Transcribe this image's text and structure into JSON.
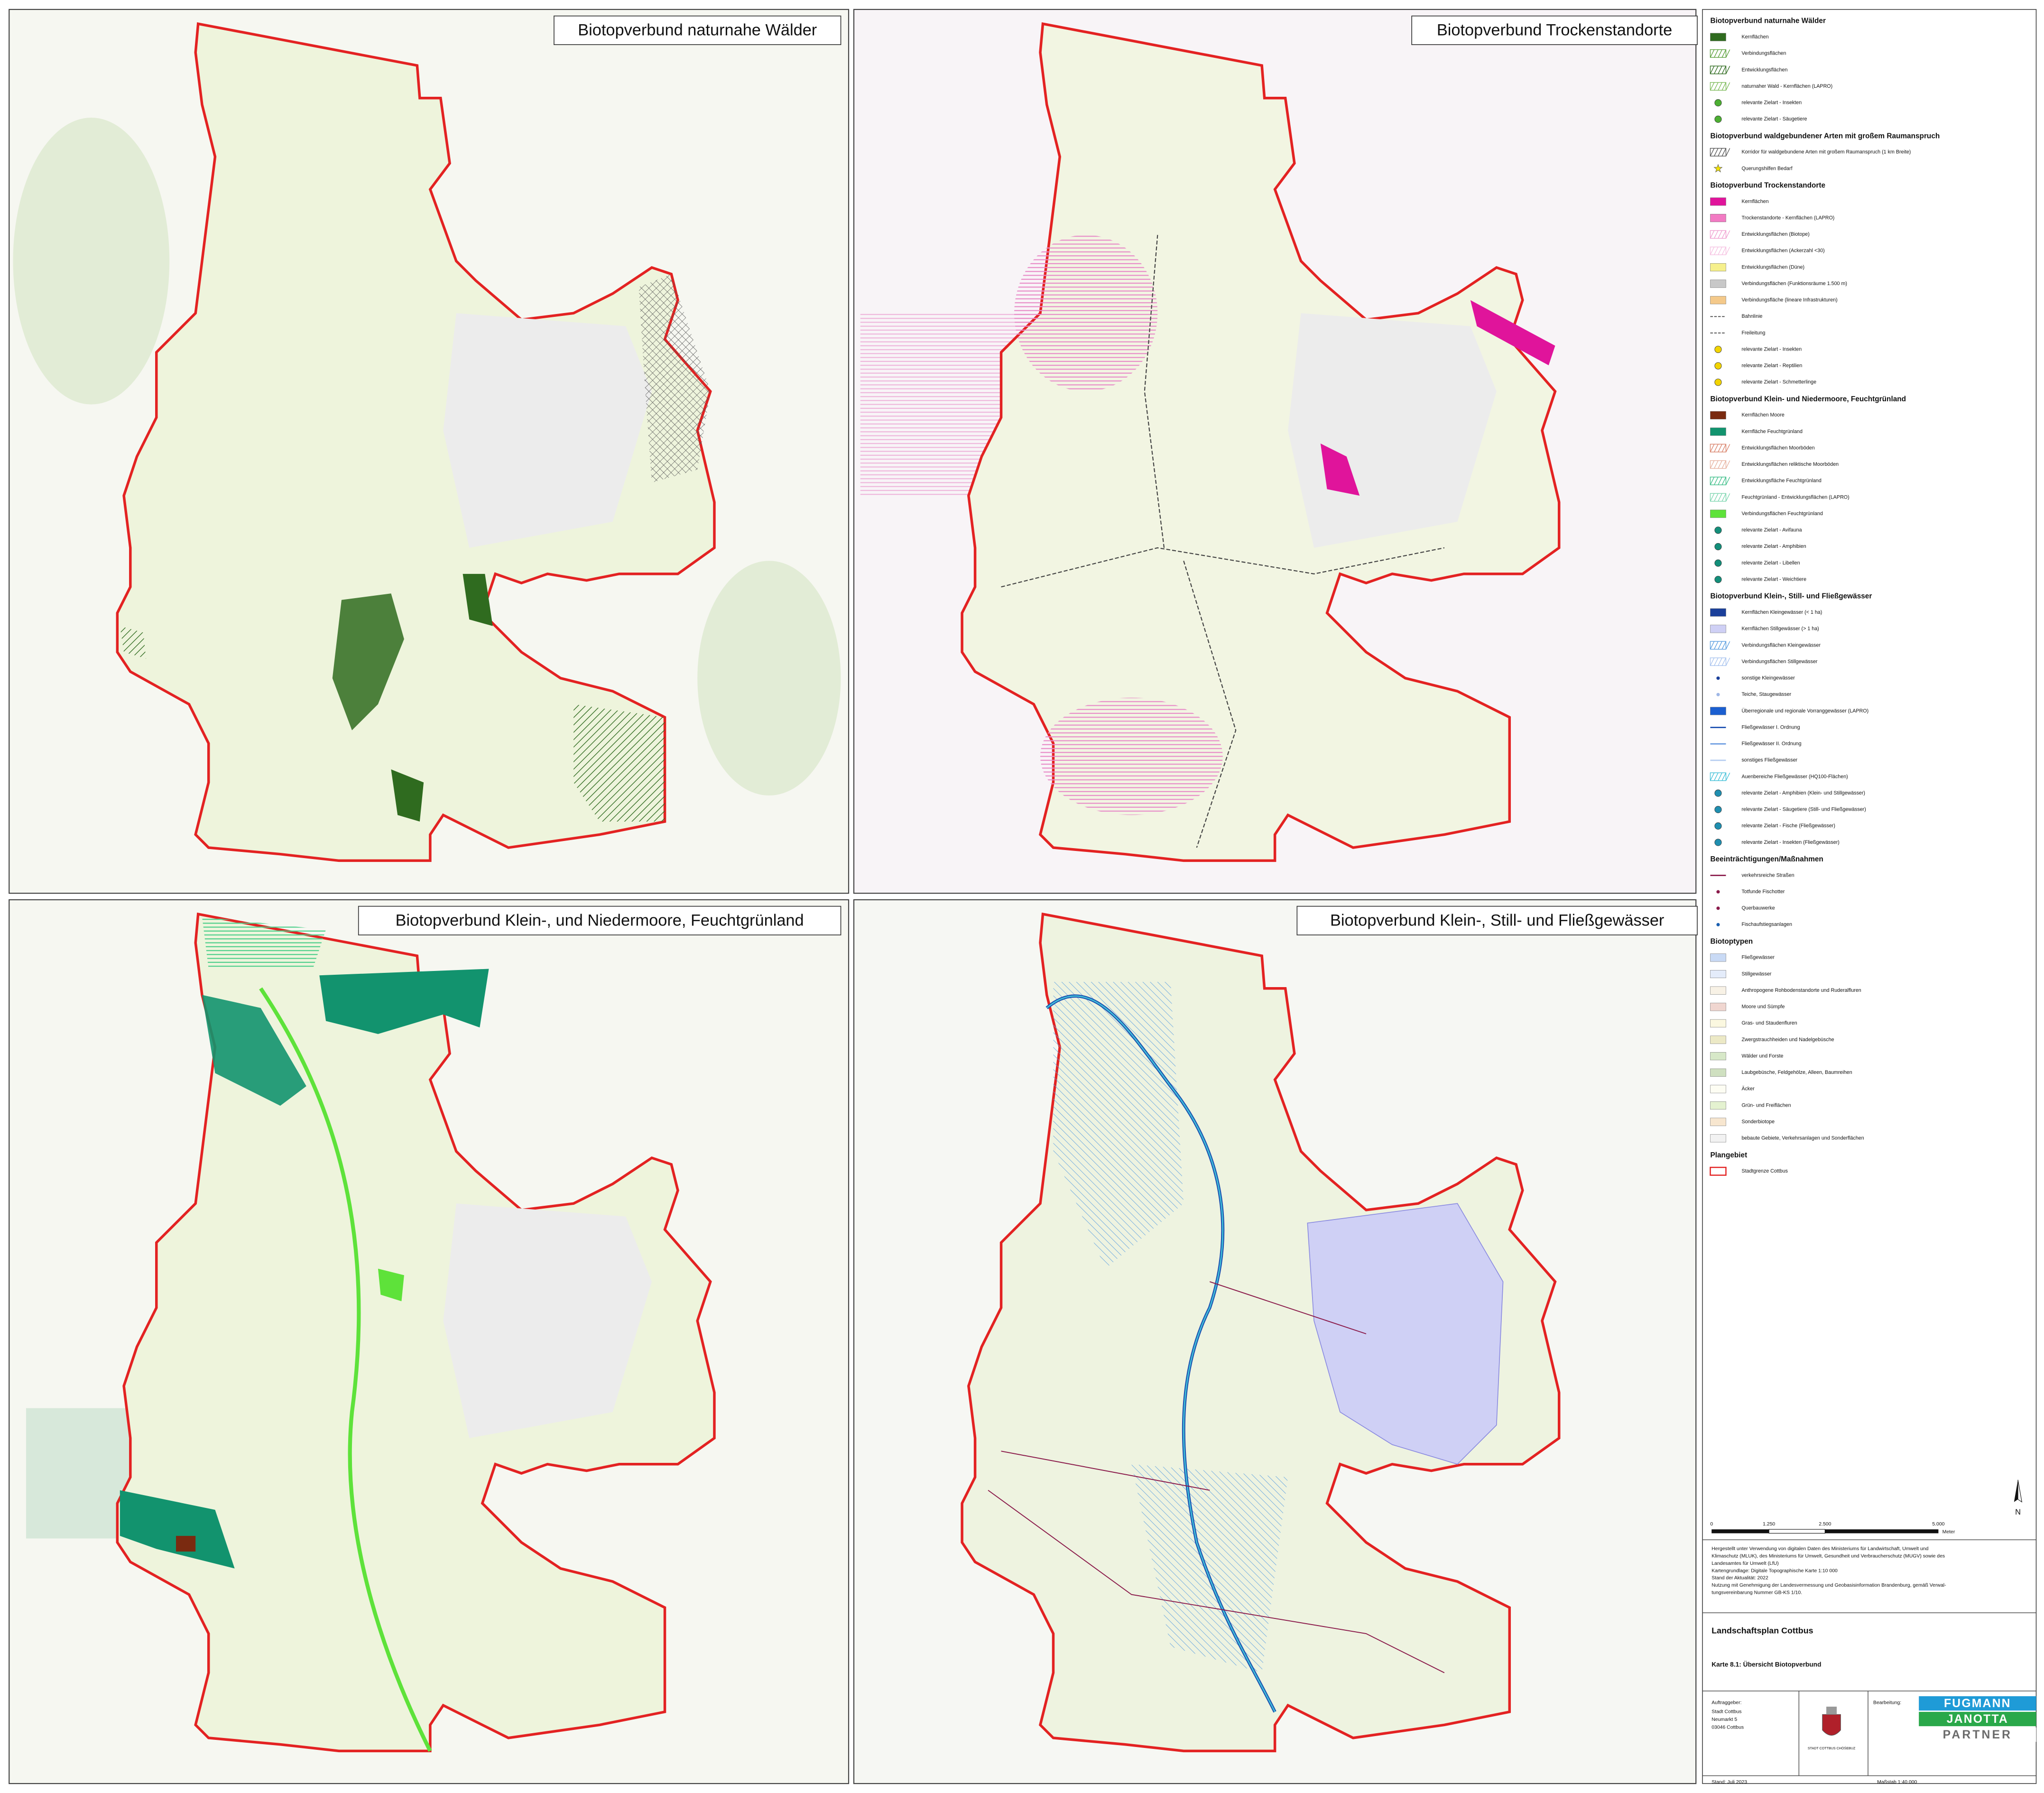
{
  "panels": [
    {
      "title": "Biotopverbund naturnahe Wälder"
    },
    {
      "title": "Biotopverbund Trockenstandorte"
    },
    {
      "title": "Biotopverbund Klein-, und Niedermoore, Feuchtgrünland"
    },
    {
      "title": "Biotopverbund Klein-, Still- und Fließgewässer"
    }
  ],
  "legend": {
    "sections": [
      {
        "title": "Biotopverbund naturnahe Wälder",
        "items": [
          {
            "label": "Kernflächen",
            "color": "#2f6b1f",
            "symbol": "rect"
          },
          {
            "label": "Verbindungsflächen",
            "color": "#5aa03a",
            "symbol": "hatch"
          },
          {
            "label": "Entwicklungsflächen",
            "color": "#2f6b1f",
            "symbol": "hatch"
          },
          {
            "label": "naturnaher Wald - Kernflächen (LAPRO)",
            "color": "#7dbb5a",
            "symbol": "hatch"
          },
          {
            "label": "relevante Zielart - Insekten",
            "color": "#4caf32",
            "symbol": "circle"
          },
          {
            "label": "relevante Zielart - Säugetiere",
            "color": "#4caf32",
            "symbol": "circle"
          }
        ]
      },
      {
        "title": "Biotopverbund waldgebundener Arten mit großem Raumanspruch",
        "items": [
          {
            "label": "Korridor für waldgebundene Arten mit großem Raumanspruch (1 km Breite)",
            "color": "#555555",
            "symbol": "hatch"
          },
          {
            "label": "Querungshilfen Bedarf",
            "color": "#f2e200",
            "symbol": "star"
          }
        ]
      },
      {
        "title": "Biotopverbund Trockenstandorte",
        "items": [
          {
            "label": "Kernflächen",
            "color": "#e0149b",
            "symbol": "rect"
          },
          {
            "label": "Trockenstandorte - Kernflächen (LAPRO)",
            "color": "#f27ac3",
            "symbol": "rect"
          },
          {
            "label": "Entwicklungsflächen (Biotope)",
            "color": "#f0a0d0",
            "symbol": "hatch"
          },
          {
            "label": "Entwicklungsflächen (Ackerzahl <30)",
            "color": "#f6c2e2",
            "symbol": "hatch"
          },
          {
            "label": "Entwicklungsflächen (Düne)",
            "color": "#f6f08c",
            "symbol": "rect"
          },
          {
            "label": "Verbindungsflächen (Funktionsräume 1.500 m)",
            "color": "#c8c8c8",
            "symbol": "rect"
          },
          {
            "label": "Verbindungsfläche (lineare Infrastrukturen)",
            "color": "#f4c98a",
            "symbol": "rect"
          },
          {
            "label": "Bahnlinie",
            "color": "#444444",
            "symbol": "dashed"
          },
          {
            "label": "Freileitung",
            "color": "#444444",
            "symbol": "dashed"
          },
          {
            "label": "relevante Zielart - Insekten",
            "color": "#f2d400",
            "symbol": "circle"
          },
          {
            "label": "relevante Zielart - Reptilien",
            "color": "#f2d400",
            "symbol": "circle"
          },
          {
            "label": "relevante Zielart - Schmetterlinge",
            "color": "#f2d400",
            "symbol": "circle"
          }
        ]
      },
      {
        "title": "Biotopverbund Klein- und Niedermoore, Feuchtgrünland",
        "items": [
          {
            "label": "Kernflächen Moore",
            "color": "#7a2a10",
            "symbol": "rect"
          },
          {
            "label": "Kernfläche Feuchtgrünland",
            "color": "#12936e",
            "symbol": "rect"
          },
          {
            "label": "Entwicklungsflächen Moorböden",
            "color": "#d9826a",
            "symbol": "hatch"
          },
          {
            "label": "Entwicklungsflächen reliktische Moorböden",
            "color": "#e7b2a0",
            "symbol": "hatch"
          },
          {
            "label": "Entwicklungsfläche Feuchtgrünland",
            "color": "#3fbf8a",
            "symbol": "hatch"
          },
          {
            "label": "Feuchtgrünland - Entwicklungsflächen (LAPRO)",
            "color": "#7ed6b0",
            "symbol": "hatch"
          },
          {
            "label": "Verbindungsflächen Feuchtgrünland",
            "color": "#5ee23a",
            "symbol": "rect"
          },
          {
            "label": "relevante Zielart - Avifauna",
            "color": "#138f7a",
            "symbol": "circle"
          },
          {
            "label": "relevante Zielart - Amphibien",
            "color": "#138f7a",
            "symbol": "circle"
          },
          {
            "label": "relevante Zielart - Libellen",
            "color": "#138f7a",
            "symbol": "circle"
          },
          {
            "label": "relevante Zielart - Weichtiere",
            "color": "#138f7a",
            "symbol": "circle"
          }
        ]
      },
      {
        "title": "Biotopverbund Klein-, Still- und Fließgewässer",
        "items": [
          {
            "label": "Kernflächen Kleingewässer (< 1 ha)",
            "color": "#1a3f9a",
            "symbol": "rect"
          },
          {
            "label": "Kernflächen Stillgewässer (> 1 ha)",
            "color": "#cfd0f5",
            "symbol": "rect"
          },
          {
            "label": "Verbindungsflächen Kleingewässer",
            "color": "#5a9ee0",
            "symbol": "hatch"
          },
          {
            "label": "Verbindungsflächen Stillgewässer",
            "color": "#a9c4ef",
            "symbol": "hatch"
          },
          {
            "label": "sonstige Kleingewässer",
            "color": "#1a3f9a",
            "symbol": "dot"
          },
          {
            "label": "Teiche, Staugewässer",
            "color": "#9fb7e6",
            "symbol": "dot"
          },
          {
            "label": "Überregionale und regionale Vorranggewässer (LAPRO)",
            "color": "#1b5fd0",
            "symbol": "rect"
          },
          {
            "label": "Fließgewässer I. Ordnung",
            "color": "#1b4fb0",
            "symbol": "line"
          },
          {
            "label": "Fließgewässer II. Ordnung",
            "color": "#6a9be0",
            "symbol": "line"
          },
          {
            "label": "sonstiges Fließgewässer",
            "color": "#b5cdf0",
            "symbol": "line"
          },
          {
            "label": "Auenbereiche Fließgewässer (HQ100-Flächen)",
            "color": "#41c0d8",
            "symbol": "hatch"
          },
          {
            "label": "relevante Zielart - Amphibien (Klein- und Stillgewässer)",
            "color": "#1f8fb0",
            "symbol": "circle"
          },
          {
            "label": "relevante Zielart - Säugetiere (Still- und Fließgewässer)",
            "color": "#1f8fb0",
            "symbol": "circle"
          },
          {
            "label": "relevante Zielart - Fische (Fließgewässer)",
            "color": "#1f8fb0",
            "symbol": "circle"
          },
          {
            "label": "relevante Zielart - Insekten (Fließgewässer)",
            "color": "#1f8fb0",
            "symbol": "circle"
          }
        ]
      },
      {
        "title": "Beeinträchtigungen/Maßnahmen",
        "items": [
          {
            "label": "verkehrsreiche Straßen",
            "color": "#8a1a4a",
            "symbol": "line"
          },
          {
            "label": "Totfunde Fischotter",
            "color": "#8a1a4a",
            "symbol": "dot"
          },
          {
            "label": "Querbauwerke",
            "color": "#8a1a4a",
            "symbol": "dot"
          },
          {
            "label": "Fischaufstiegsanlagen",
            "color": "#1a5fb0",
            "symbol": "dot"
          }
        ]
      },
      {
        "title": "Biotoptypen",
        "items": [
          {
            "label": "Fließgewässer",
            "color": "#c9daf5",
            "symbol": "rect"
          },
          {
            "label": "Stillgewässer",
            "color": "#e4ecfa",
            "symbol": "rect"
          },
          {
            "label": "Anthropogene Rohbodenstandorte und Ruderalfluren",
            "color": "#f8f2e6",
            "symbol": "rect"
          },
          {
            "label": "Moore und Sümpfe",
            "color": "#f0d6d0",
            "symbol": "rect"
          },
          {
            "label": "Gras- und Staudenfluren",
            "color": "#fbf8e0",
            "symbol": "rect"
          },
          {
            "label": "Zwergstrauchheiden und Nadelgebüsche",
            "color": "#ece9c6",
            "symbol": "rect"
          },
          {
            "label": "Wälder und Forste",
            "color": "#d7e8c8",
            "symbol": "rect"
          },
          {
            "label": "Laubgebüsche, Feldgehölze, Alleen, Baumreihen",
            "color": "#cfe0c0",
            "symbol": "rect"
          },
          {
            "label": "Äcker",
            "color": "#fdfdf3",
            "symbol": "rect"
          },
          {
            "label": "Grün- und Freiflächen",
            "color": "#e4f2d0",
            "symbol": "rect"
          },
          {
            "label": "Sonderbiotope",
            "color": "#f7e6cf",
            "symbol": "rect"
          },
          {
            "label": "bebaute Gebiete, Verkehrsanlagen und Sonderflächen",
            "color": "#f2f2f2",
            "symbol": "rect"
          }
        ]
      },
      {
        "title": "Plangebiet",
        "items": [
          {
            "label": "Stadtgrenze Cottbus",
            "color": "#e32222",
            "symbol": "outline"
          }
        ]
      }
    ]
  },
  "north_arrow": "N",
  "scale_bar": {
    "labels": [
      "0",
      "1.250",
      "2.500",
      "5.000"
    ],
    "unit": "Meter"
  },
  "credits": [
    "Hergestellt unter Verwendung von digitalen Daten des Ministeriums für Landwirtschaft, Umwelt und",
    "Klimaschutz (MLUK), des Ministeriums für Umwelt, Gesundheit und Verbraucherschutz (MUGV) sowie des",
    "Landesamtes für Umwelt (LfU)",
    "Kartengrundlage: Digitale Topographische Karte 1:10 000",
    "Stand der Aktualität: 2022",
    "Nutzung mit Genehmigung der Landesvermessung und Geobasisinformation Brandenburg, gemäß Verwal-",
    "tungsvereinbarung Nummer GB-KS 1/10."
  ],
  "title_block": {
    "title": "Landschaftsplan Cottbus",
    "subtitle": "Karte 8.1: Übersicht Biotopverbund",
    "client_label": "Auftraggeber:",
    "client": [
      "Stadt Cottbus",
      "Neumarkt 5",
      "03046 Cottbus"
    ],
    "crest_caption": "STADT COTTBUS CHÓŚEBUZ",
    "contractor_label": "Bearbeitung:",
    "contractor_logo": [
      "FUGMANN",
      "JANOTTA",
      "PARTNER"
    ],
    "date": "Stand: Juli 2023",
    "scale": "Maßstab 1:40.000"
  }
}
